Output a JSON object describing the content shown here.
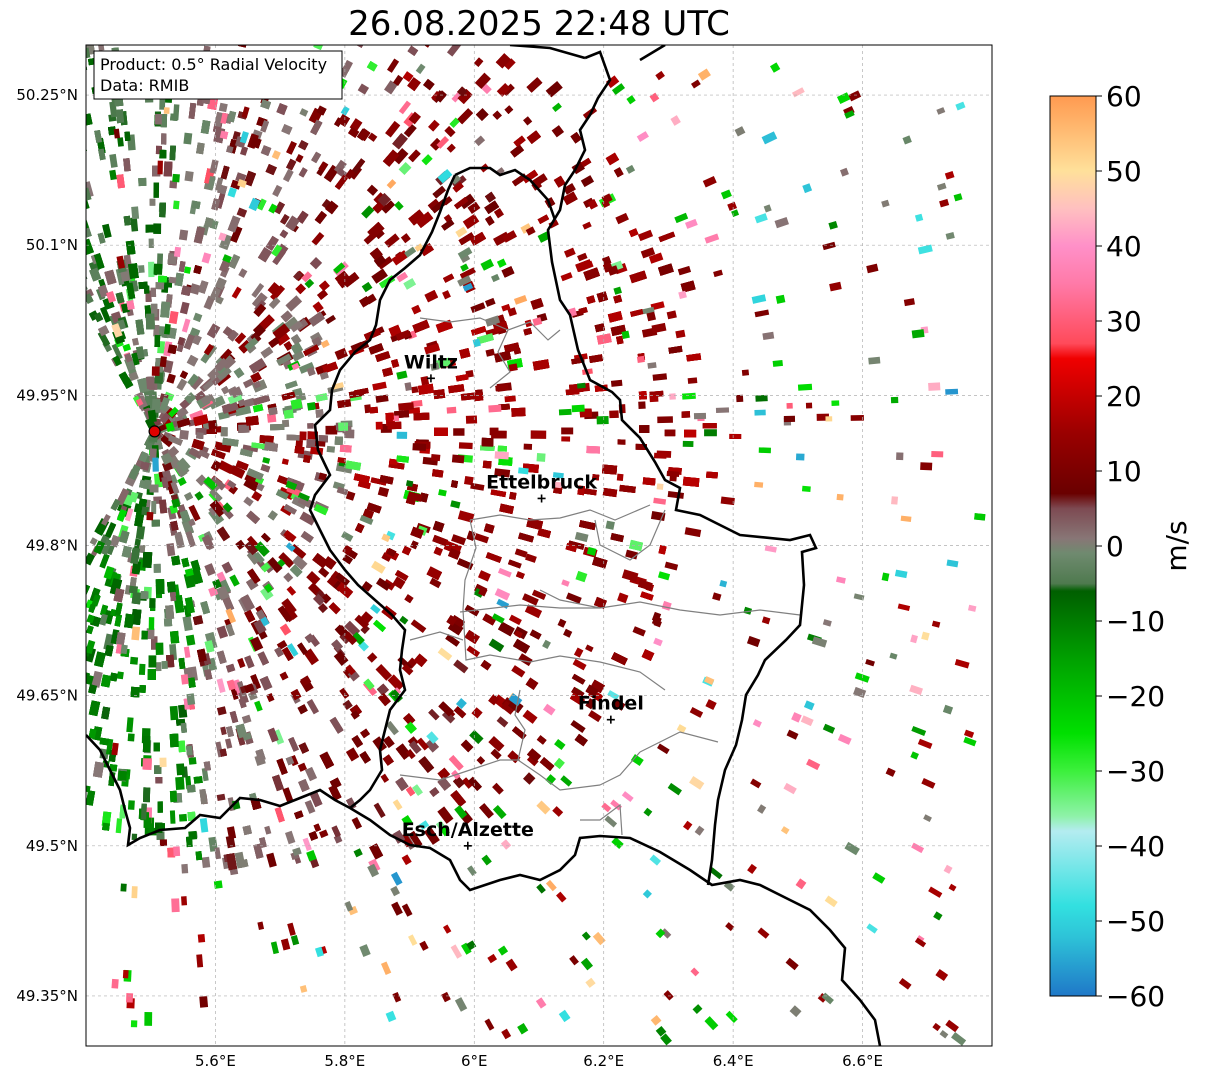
{
  "title": "26.08.2025 22:48 UTC",
  "info_box": {
    "product": "Product: 0.5° Radial Velocity",
    "data_source": "Data: RMIB"
  },
  "axes": {
    "lon_min": 5.4,
    "lon_max": 6.8,
    "lat_min": 49.3,
    "lat_max": 50.3,
    "x_ticks": [
      {
        "value": 5.6,
        "label": "5.6°E"
      },
      {
        "value": 5.8,
        "label": "5.8°E"
      },
      {
        "value": 6.0,
        "label": "6°E"
      },
      {
        "value": 6.2,
        "label": "6.2°E"
      },
      {
        "value": 6.4,
        "label": "6.4°E"
      },
      {
        "value": 6.6,
        "label": "6.6°E"
      }
    ],
    "y_ticks": [
      {
        "value": 50.25,
        "label": "50.25°N"
      },
      {
        "value": 50.1,
        "label": "50.1°N"
      },
      {
        "value": 49.95,
        "label": "49.95°N"
      },
      {
        "value": 49.8,
        "label": "49.8°N"
      },
      {
        "value": 49.65,
        "label": "49.65°N"
      },
      {
        "value": 49.5,
        "label": "49.5°N"
      },
      {
        "value": 49.35,
        "label": "49.35°N"
      }
    ]
  },
  "radar_site": {
    "lon": 5.506,
    "lat": 49.914
  },
  "cities": [
    {
      "name": "Wiltz",
      "lon": 5.933,
      "lat": 49.967
    },
    {
      "name": "Ettelbruck",
      "lon": 6.104,
      "lat": 49.847
    },
    {
      "name": "Findel",
      "lon": 6.211,
      "lat": 49.626
    },
    {
      "name": "Esch/Alzette",
      "lon": 5.99,
      "lat": 49.5
    }
  ],
  "colorbar": {
    "label": "m/s",
    "min": -60,
    "max": 60,
    "tick_values": [
      60,
      50,
      40,
      30,
      20,
      10,
      0,
      -10,
      -20,
      -30,
      -40,
      -50,
      -60
    ],
    "tick_labels": [
      "60",
      "50",
      "40",
      "30",
      "20",
      "10",
      "0",
      "−10",
      "−20",
      "−30",
      "−40",
      "−50",
      "−60"
    ],
    "stops": [
      {
        "v": -60,
        "c": "#1f78c8"
      },
      {
        "v": -52,
        "c": "#2ec4d8"
      },
      {
        "v": -48,
        "c": "#32e0e0"
      },
      {
        "v": -38,
        "c": "#b4ecf0"
      },
      {
        "v": -36,
        "c": "#8ef2a8"
      },
      {
        "v": -30,
        "c": "#3cf03c"
      },
      {
        "v": -25,
        "c": "#00e000"
      },
      {
        "v": -15,
        "c": "#00a000"
      },
      {
        "v": -6,
        "c": "#005f00"
      },
      {
        "v": -5,
        "c": "#4f7a4f"
      },
      {
        "v": -1,
        "c": "#6f8a6f"
      },
      {
        "v": 1,
        "c": "#887676"
      },
      {
        "v": 5,
        "c": "#7d4a52"
      },
      {
        "v": 7,
        "c": "#6a0000"
      },
      {
        "v": 15,
        "c": "#9a0000"
      },
      {
        "v": 25,
        "c": "#f00000"
      },
      {
        "v": 27,
        "c": "#ff4a5a"
      },
      {
        "v": 35,
        "c": "#ff7aa8"
      },
      {
        "v": 40,
        "c": "#ff90c8"
      },
      {
        "v": 45,
        "c": "#ffc0c0"
      },
      {
        "v": 50,
        "c": "#ffe09a"
      },
      {
        "v": 60,
        "c": "#ff9a50"
      }
    ]
  },
  "colors": {
    "border": "#000000",
    "canton": "#808080",
    "grid": "#b0b0b0",
    "radar_dot": "#e00000"
  }
}
